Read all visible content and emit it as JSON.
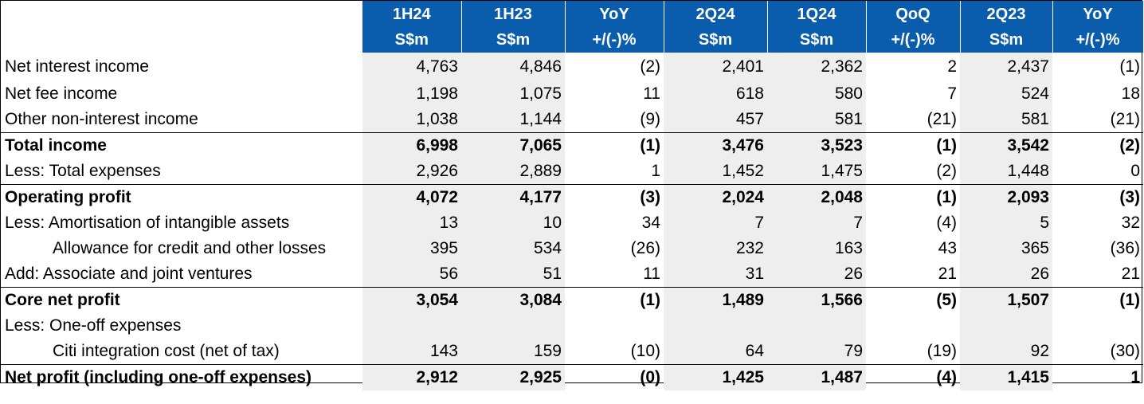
{
  "columns": [
    {
      "period": "1H24",
      "unit": "S$m"
    },
    {
      "period": "1H23",
      "unit": "S$m"
    },
    {
      "period": "YoY",
      "unit": "+/(-)%"
    },
    {
      "period": "2Q24",
      "unit": "S$m"
    },
    {
      "period": "1Q24",
      "unit": "S$m"
    },
    {
      "period": "QoQ",
      "unit": "+/(-)%"
    },
    {
      "period": "2Q23",
      "unit": "S$m"
    },
    {
      "period": "YoY",
      "unit": "+/(-)%"
    }
  ],
  "rows": [
    {
      "label": "Net interest income",
      "values": [
        "4,763",
        "4,846",
        "(2)",
        "2,401",
        "2,362",
        "2",
        "2,437",
        "(1)"
      ]
    },
    {
      "label": "Net fee income",
      "values": [
        "1,198",
        "1,075",
        "11",
        "618",
        "580",
        "7",
        "524",
        "18"
      ]
    },
    {
      "label": "Other non-interest income",
      "values": [
        "1,038",
        "1,144",
        "(9)",
        "457",
        "581",
        "(21)",
        "581",
        "(21)"
      ]
    },
    {
      "label": "Total income",
      "values": [
        "6,998",
        "7,065",
        "(1)",
        "3,476",
        "3,523",
        "(1)",
        "3,542",
        "(2)"
      ]
    },
    {
      "label": "Less: Total expenses",
      "values": [
        "2,926",
        "2,889",
        "1",
        "1,452",
        "1,475",
        "(2)",
        "1,448",
        "0"
      ]
    },
    {
      "label": "Operating profit",
      "values": [
        "4,072",
        "4,177",
        "(3)",
        "2,024",
        "2,048",
        "(1)",
        "2,093",
        "(3)"
      ]
    },
    {
      "label": "Less: Amortisation of intangible assets",
      "values": [
        "13",
        "10",
        "34",
        "7",
        "7",
        "(4)",
        "5",
        "32"
      ]
    },
    {
      "label": "Allowance for credit and other losses",
      "values": [
        "395",
        "534",
        "(26)",
        "232",
        "163",
        "43",
        "365",
        "(36)"
      ]
    },
    {
      "label": "Add:  Associate and joint ventures",
      "values": [
        "56",
        "51",
        "11",
        "31",
        "26",
        "21",
        "26",
        "21"
      ]
    },
    {
      "label": "Core net profit",
      "values": [
        "3,054",
        "3,084",
        "(1)",
        "1,489",
        "1,566",
        "(5)",
        "1,507",
        "(1)"
      ]
    },
    {
      "label": "Less: One-off expenses",
      "values": [
        "",
        "",
        "",
        "",
        "",
        "",
        "",
        ""
      ]
    },
    {
      "label": "Citi integration cost (net of tax)",
      "values": [
        "143",
        "159",
        "(10)",
        "64",
        "79",
        "(19)",
        "92",
        "(30)"
      ]
    },
    {
      "label": "Net profit (including one-off expenses)",
      "values": [
        "2,912",
        "2,925",
        "(0)",
        "1,425",
        "1,487",
        "(4)",
        "1,415",
        "1"
      ]
    }
  ]
}
